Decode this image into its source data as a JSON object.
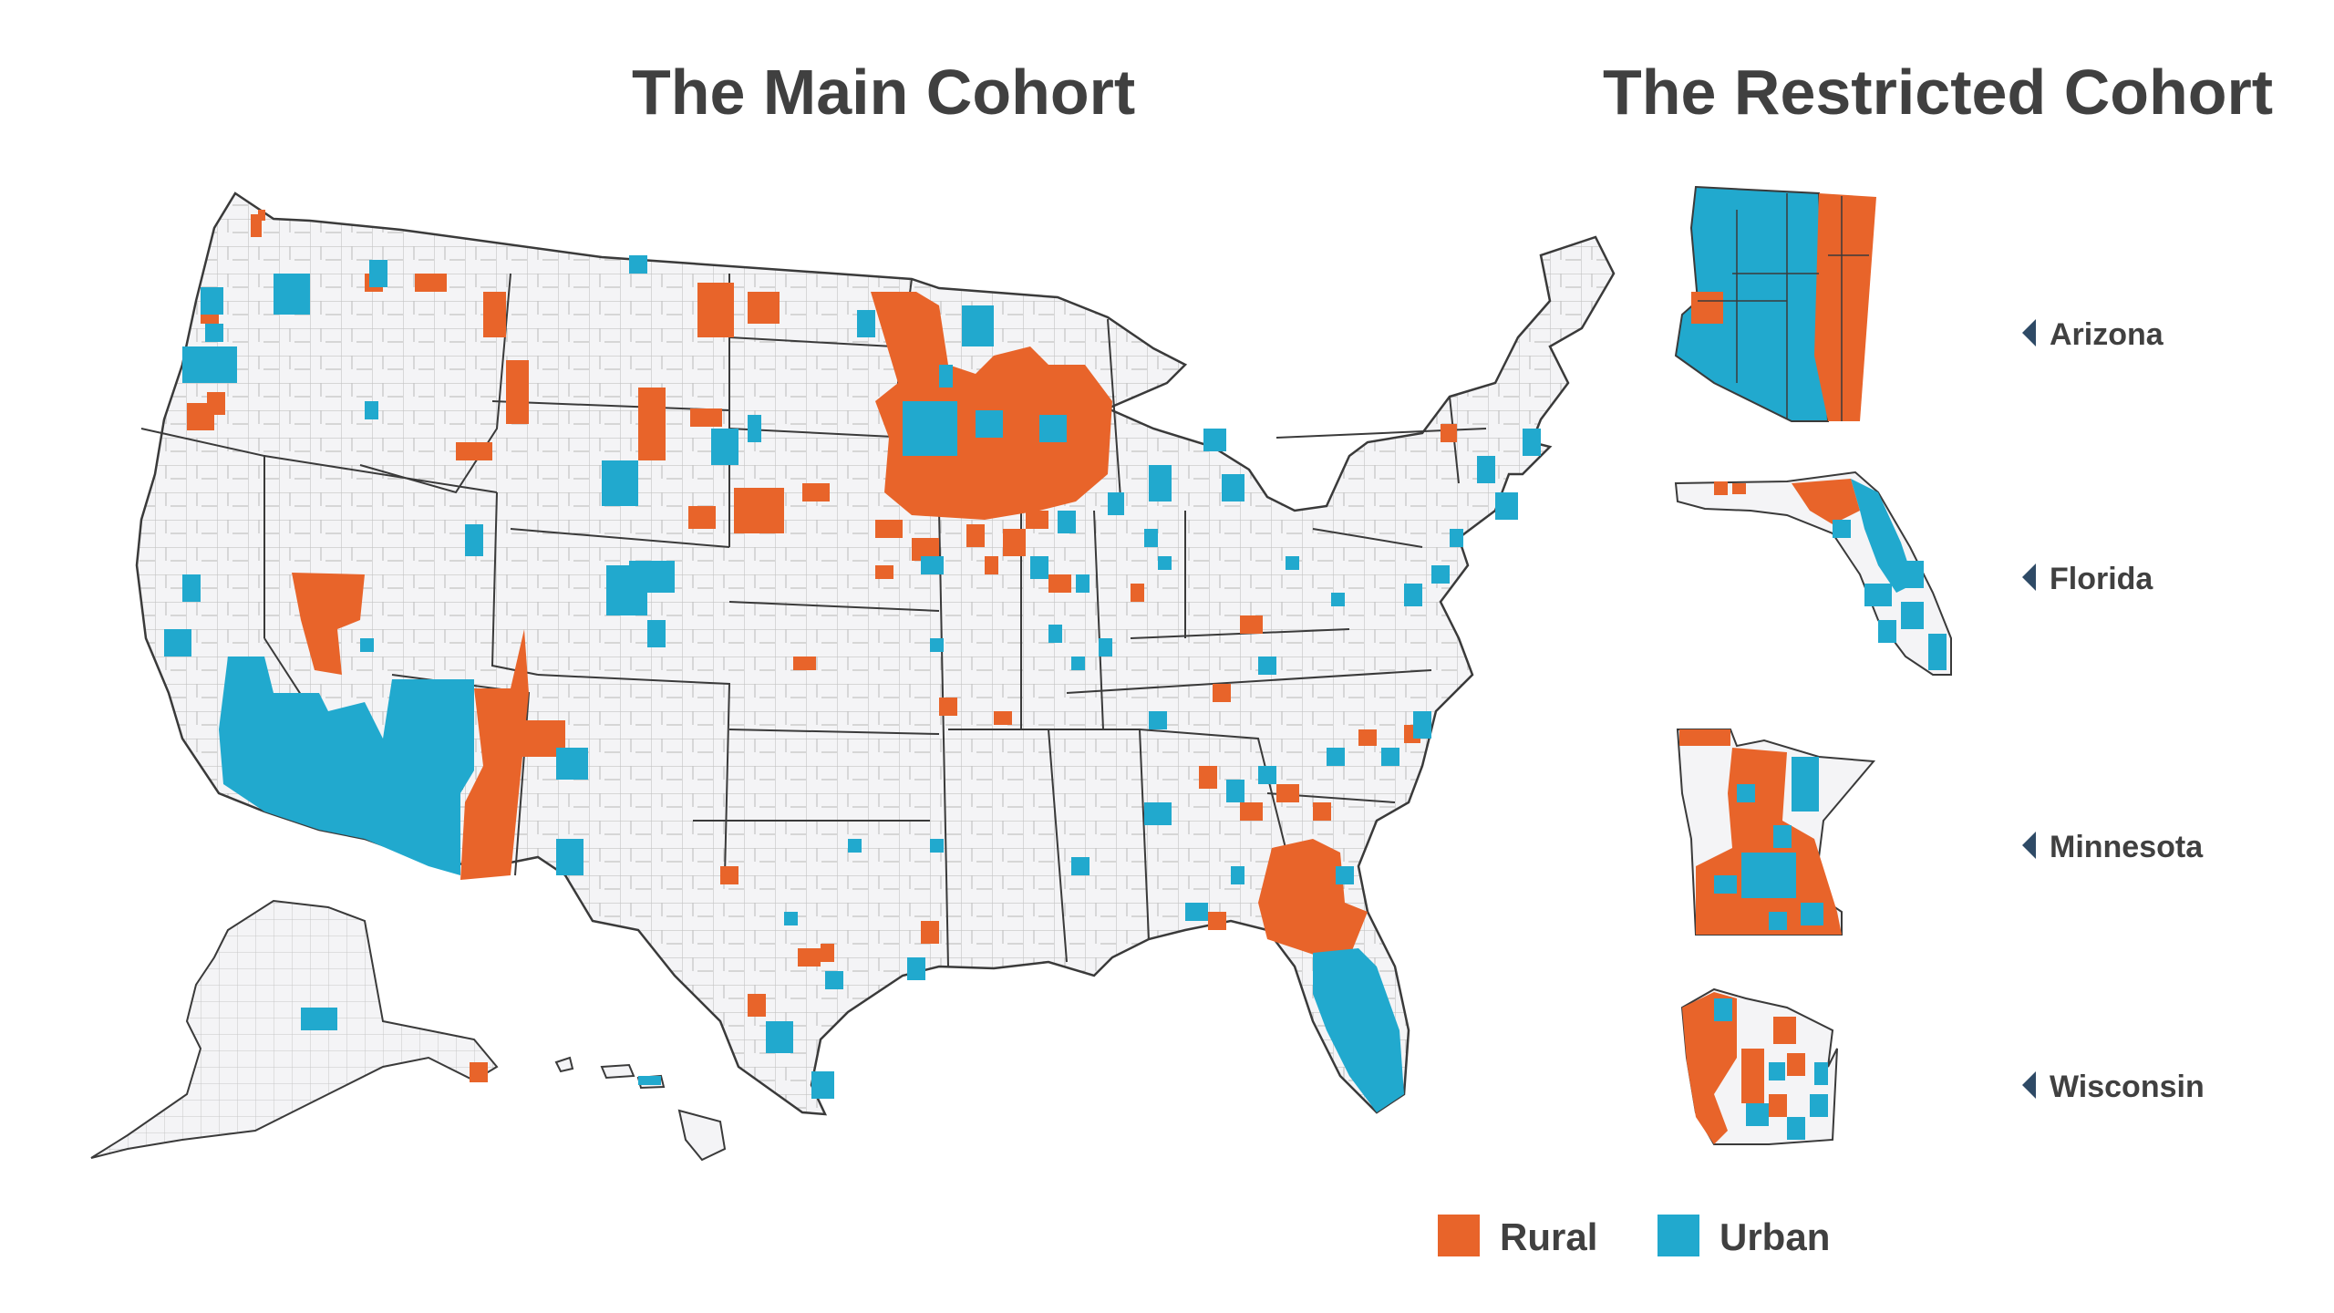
{
  "titles": {
    "main": "The Main Cohort",
    "restricted": "The Restricted Cohort"
  },
  "colors": {
    "rural": "#E8642A",
    "urban": "#21A9CE",
    "county_fill": "#F4F4F6",
    "county_line": "#BDBDBD",
    "state_line": "#3A3A3A",
    "text": "#404040",
    "arrow": "#2E4A66"
  },
  "restricted_states": [
    {
      "name": "Arizona"
    },
    {
      "name": "Florida"
    },
    {
      "name": "Minnesota"
    },
    {
      "name": "Wisconsin"
    }
  ],
  "legend": [
    {
      "label": "Rural",
      "category": "rural"
    },
    {
      "label": "Urban",
      "category": "urban"
    }
  ]
}
